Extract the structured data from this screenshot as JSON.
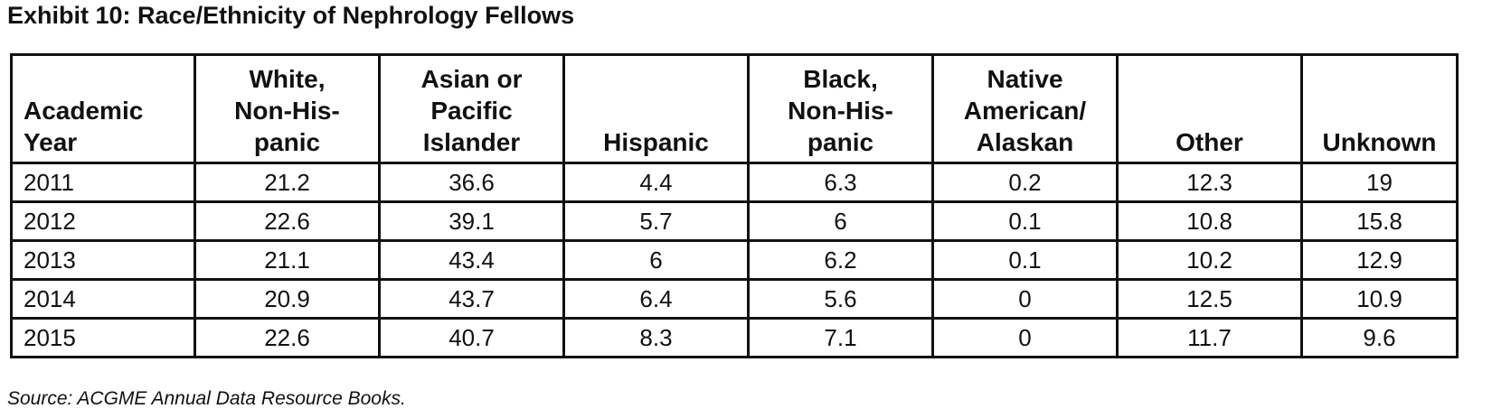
{
  "title": "Exhibit 10: Race/Ethnicity of Nephrology Fellows",
  "table": {
    "headers": [
      [
        "Academic",
        "Year"
      ],
      [
        "White,",
        "Non-His-",
        "panic"
      ],
      [
        "Asian or",
        "Pacific",
        "Islander"
      ],
      [
        "Hispanic"
      ],
      [
        "Black,",
        "Non-His-",
        "panic"
      ],
      [
        "Native",
        "American/",
        "Alaskan"
      ],
      [
        "Other"
      ],
      [
        "Unknown"
      ]
    ],
    "rows": [
      [
        "2011",
        21.2,
        36.6,
        4.4,
        6.3,
        0.2,
        12.3,
        19
      ],
      [
        "2012",
        22.6,
        39.1,
        5.7,
        6,
        0.1,
        10.8,
        15.8
      ],
      [
        "2013",
        21.1,
        43.4,
        6,
        6.2,
        0.1,
        10.2,
        12.9
      ],
      [
        "2014",
        20.9,
        43.7,
        6.4,
        5.6,
        0,
        12.5,
        10.9
      ],
      [
        "2015",
        22.6,
        40.7,
        8.3,
        7.1,
        0,
        11.7,
        9.6
      ]
    ]
  },
  "source": "Source: ACGME Annual Data Resource Books."
}
